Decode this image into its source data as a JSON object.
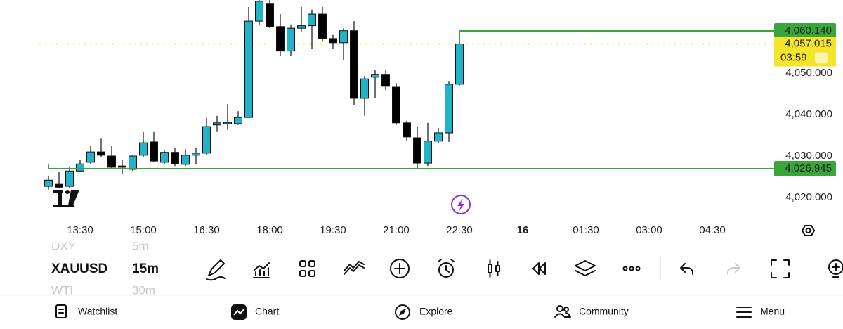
{
  "chart": {
    "type": "candlestick",
    "up_color": "#22b3c9",
    "down_color": "#000000",
    "ylim": [
      4015.1,
      4067.6
    ],
    "yticks": [
      {
        "value": 4050,
        "label": "4,050.000"
      },
      {
        "value": 4040,
        "label": "4,040.000"
      },
      {
        "value": 4030,
        "label": "4,030.000"
      },
      {
        "value": 4020,
        "label": "4,020.000"
      }
    ],
    "time_labels": [
      "13:30",
      "15:00",
      "16:30",
      "18:00",
      "19:30",
      "21:00",
      "22:30",
      "16",
      "01:30",
      "03:00",
      "04:30"
    ],
    "high_line": {
      "value": 4060.14,
      "label": "4,060.140",
      "color": "#3aa53a"
    },
    "low_line": {
      "value": 4026.945,
      "label": "4,026.945",
      "color": "#3aa53a"
    },
    "last_price": {
      "value": 4057.015,
      "label": "4,057.015",
      "countdown": "03:59",
      "color": "#f5e52a"
    },
    "candles": [
      {
        "open": 4022.7,
        "high": 4025.3,
        "low": 4021.9,
        "close": 4024.2
      },
      {
        "open": 4023.2,
        "high": 4026.1,
        "low": 4022.2,
        "close": 4022.5
      },
      {
        "open": 4022.7,
        "high": 4027.3,
        "low": 4022.2,
        "close": 4026.4
      },
      {
        "open": 4026.4,
        "high": 4029.0,
        "low": 4026.1,
        "close": 4028.1
      },
      {
        "open": 4028.5,
        "high": 4032.4,
        "low": 4028.1,
        "close": 4031.0
      },
      {
        "open": 4031.0,
        "high": 4034.2,
        "low": 4029.8,
        "close": 4030.2
      },
      {
        "open": 4030.0,
        "high": 4032.4,
        "low": 4027.0,
        "close": 4027.3
      },
      {
        "open": 4027.6,
        "high": 4029.0,
        "low": 4025.6,
        "close": 4027.3
      },
      {
        "open": 4026.8,
        "high": 4030.3,
        "low": 4026.4,
        "close": 4030.0
      },
      {
        "open": 4030.2,
        "high": 4035.8,
        "low": 4029.8,
        "close": 4033.2
      },
      {
        "open": 4033.4,
        "high": 4035.8,
        "low": 4028.5,
        "close": 4028.8
      },
      {
        "open": 4028.5,
        "high": 4031.5,
        "low": 4028.1,
        "close": 4030.9
      },
      {
        "open": 4030.9,
        "high": 4032.0,
        "low": 4027.6,
        "close": 4028.1
      },
      {
        "open": 4028.0,
        "high": 4031.7,
        "low": 4027.6,
        "close": 4030.2
      },
      {
        "open": 4030.2,
        "high": 4032.0,
        "low": 4028.0,
        "close": 4030.7
      },
      {
        "open": 4030.7,
        "high": 4039.2,
        "low": 4030.3,
        "close": 4037.1
      },
      {
        "open": 4037.5,
        "high": 4039.7,
        "low": 4035.8,
        "close": 4038.0
      },
      {
        "open": 4037.8,
        "high": 4042.5,
        "low": 4036.3,
        "close": 4038.1
      },
      {
        "open": 4037.8,
        "high": 4040.8,
        "low": 4037.5,
        "close": 4039.3
      },
      {
        "open": 4039.3,
        "high": 4065.9,
        "low": 4039.2,
        "close": 4062.5
      },
      {
        "open": 4062.5,
        "high": 4067.6,
        "low": 4061.7,
        "close": 4067.3
      },
      {
        "open": 4066.8,
        "high": 4067.6,
        "low": 4060.8,
        "close": 4061.2
      },
      {
        "open": 4061.2,
        "high": 4064.2,
        "low": 4054.1,
        "close": 4055.3
      },
      {
        "open": 4055.3,
        "high": 4061.7,
        "low": 4054.1,
        "close": 4060.8
      },
      {
        "open": 4060.8,
        "high": 4065.9,
        "low": 4060.0,
        "close": 4061.4
      },
      {
        "open": 4061.4,
        "high": 4065.3,
        "low": 4055.8,
        "close": 4064.2
      },
      {
        "open": 4064.2,
        "high": 4065.9,
        "low": 4057.5,
        "close": 4058.3
      },
      {
        "open": 4058.3,
        "high": 4059.2,
        "low": 4055.8,
        "close": 4057.3
      },
      {
        "open": 4057.3,
        "high": 4060.8,
        "low": 4053.2,
        "close": 4060.2
      },
      {
        "open": 4060.2,
        "high": 4062.5,
        "low": 4042.2,
        "close": 4043.9
      },
      {
        "open": 4043.9,
        "high": 4049.3,
        "low": 4039.7,
        "close": 4048.6
      },
      {
        "open": 4049.0,
        "high": 4050.7,
        "low": 4043.9,
        "close": 4049.7
      },
      {
        "open": 4049.7,
        "high": 4050.7,
        "low": 4045.9,
        "close": 4046.8
      },
      {
        "open": 4046.6,
        "high": 4047.6,
        "low": 4037.5,
        "close": 4038.0
      },
      {
        "open": 4038.0,
        "high": 4038.5,
        "low": 4033.7,
        "close": 4034.6
      },
      {
        "open": 4034.4,
        "high": 4037.1,
        "low": 4026.9,
        "close": 4028.3
      },
      {
        "open": 4028.3,
        "high": 4038.0,
        "low": 4027.6,
        "close": 4033.6
      },
      {
        "open": 4033.6,
        "high": 4036.8,
        "low": 4033.2,
        "close": 4035.6
      },
      {
        "open": 4035.6,
        "high": 4048.1,
        "low": 4033.4,
        "close": 4047.3
      },
      {
        "open": 4047.3,
        "high": 4060.1,
        "low": 4047.0,
        "close": 4057.0
      }
    ]
  },
  "symbols": {
    "previous": {
      "name": "DXY",
      "interval": "5m"
    },
    "current": {
      "name": "XAUUSD",
      "interval": "15m"
    },
    "next": {
      "name": "WTI",
      "interval": "30m"
    }
  },
  "nav": [
    "Watchlist",
    "Chart",
    "Explore",
    "Community",
    "Menu"
  ]
}
